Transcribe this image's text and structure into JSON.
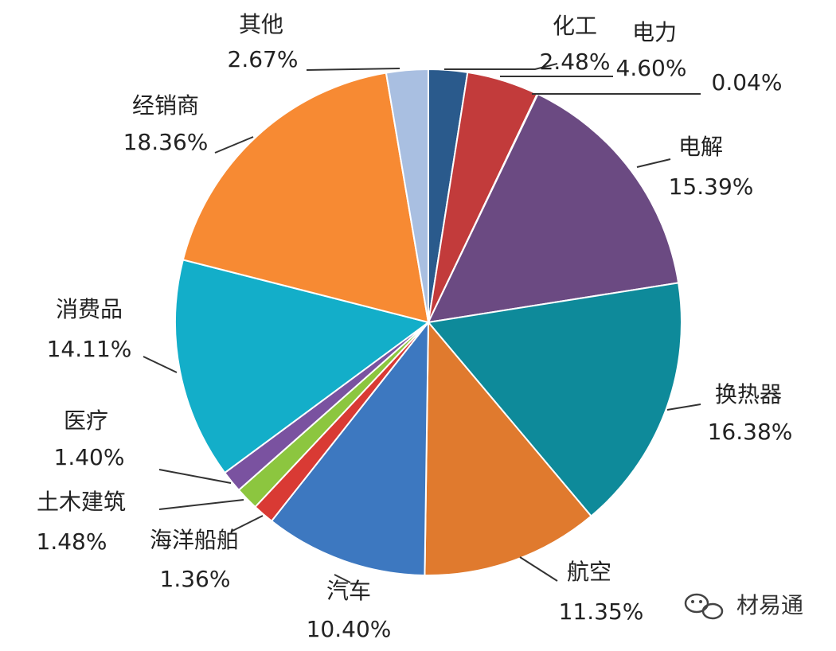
{
  "chart_data": {
    "type": "pie",
    "start_angle_deg": 0,
    "direction": "clockwise",
    "slices": [
      {
        "category": "化工",
        "value": 2.48,
        "label": "2.48%",
        "color": "#2a5a8c"
      },
      {
        "category": "电力",
        "value": 4.6,
        "label": "4.60%",
        "color": "#c23b3b"
      },
      {
        "category": "",
        "value": 0.04,
        "label": "0.04%",
        "color": "#8aa33a"
      },
      {
        "category": "电解",
        "value": 15.39,
        "label": "15.39%",
        "color": "#6b4a82"
      },
      {
        "category": "换热器",
        "value": 16.38,
        "label": "16.38%",
        "color": "#0e8a9a"
      },
      {
        "category": "航空",
        "value": 11.35,
        "label": "11.35%",
        "color": "#e07a2e"
      },
      {
        "category": "汽车",
        "value": 10.4,
        "label": "10.40%",
        "color": "#3d78c0"
      },
      {
        "category": "海洋船舶",
        "value": 1.36,
        "label": "1.36%",
        "color": "#d93a34"
      },
      {
        "category": "土木建筑",
        "value": 1.48,
        "label": "1.48%",
        "color": "#8cc63f"
      },
      {
        "category": "医疗",
        "value": 1.4,
        "label": "1.40%",
        "color": "#7a52a0"
      },
      {
        "category": "消费品",
        "value": 14.11,
        "label": "14.11%",
        "color": "#13aec9"
      },
      {
        "category": "经销商",
        "value": 18.36,
        "label": "18.36%",
        "color": "#f78a33"
      },
      {
        "category": "其他",
        "value": 2.67,
        "label": "2.67%",
        "color": "#a9bfe1"
      }
    ]
  },
  "watermark": {
    "text": "材易通",
    "icon": "wechat-icon"
  }
}
